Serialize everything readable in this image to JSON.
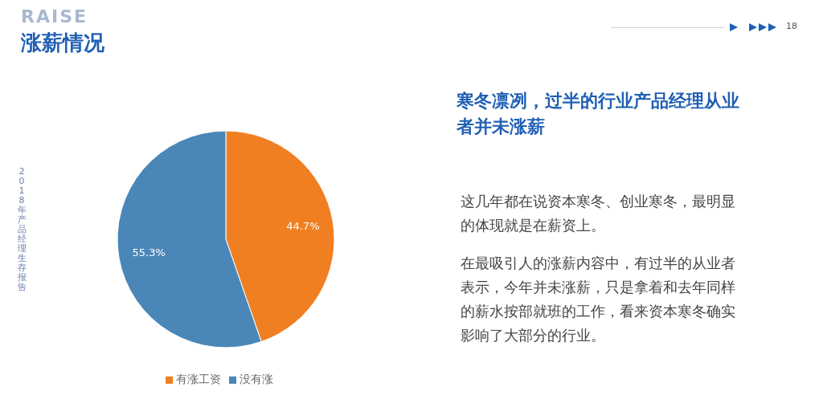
{
  "chart_data": {
    "type": "pie",
    "title": "涨薪情况",
    "subtitle": "寒冬凛冽，过半的行业产品经理从业者并未涨薪",
    "categories": [
      "有涨工资",
      "没有涨"
    ],
    "values": [
      44.7,
      55.3
    ],
    "colors": [
      "#f07f22",
      "#4b86b8"
    ],
    "value_labels": [
      "44.7%",
      "55.3%"
    ],
    "legend": "bottom",
    "annotations": [
      "这几年都在说资本寒冬、创业寒冬，最明显的体现就是在薪资上。",
      "在最吸引人的涨薪内容中，有过半的从业者表示，今年并未涨薪，只是拿着和去年同样的薪水按部就班的工作，看来资本寒冬确实影响了大部分的行业。",
      "2018年产品经理生存报告",
      "RAISE",
      "18"
    ]
  }
}
